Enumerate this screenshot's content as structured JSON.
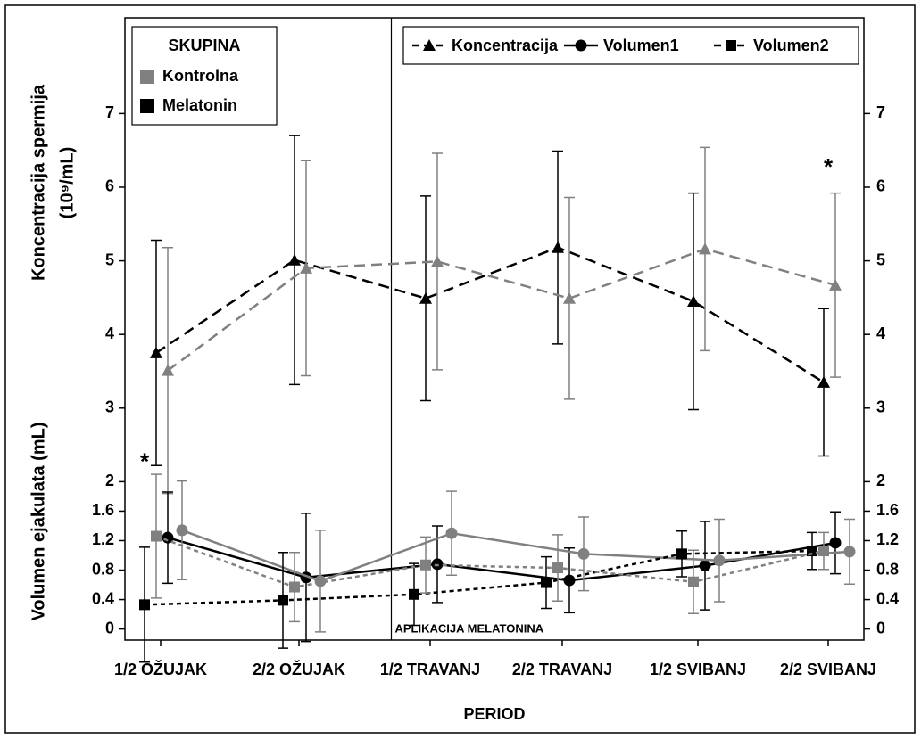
{
  "chart_data": {
    "type": "line",
    "x_label": "PERIOD",
    "y_label_upper": "Koncentracija spermija",
    "y_label_upper_unit": "(10⁹/mL)",
    "y_label_lower": "Volumen ejakulata (mL)",
    "annotation": "APLIKACIJA MELATONINA",
    "annotation_category": 1.5,
    "asterisks": [
      {
        "text": "*",
        "category": 0,
        "y": 2.25
      },
      {
        "text": "*",
        "category": 5,
        "y": 6.25
      }
    ],
    "categories": [
      "1/2 OŽUJAK",
      "2/2 OŽUJAK",
      "1/2 TRAVANJ",
      "2/2 TRAVANJ",
      "1/2 SVIBANJ",
      "2/2 SVIBANJ"
    ],
    "ylim": [
      -0.15,
      8.3
    ],
    "yticks": [
      0,
      0.4,
      0.8,
      1.2,
      1.6,
      2,
      3,
      4,
      5,
      6,
      7
    ],
    "y2lim": [
      -0.15,
      8.3
    ],
    "y2ticks": [
      0,
      0.4,
      0.8,
      1.2,
      1.6,
      2,
      3,
      4,
      5,
      6,
      7
    ],
    "group_legend": {
      "title": "SKUPINA",
      "items": [
        {
          "name": "Kontrolna",
          "color": "#808080"
        },
        {
          "name": "Melatonin",
          "color": "#000000"
        }
      ]
    },
    "measure_legend": [
      {
        "name": "Koncentracija",
        "marker": "triangle",
        "dash": "dashed"
      },
      {
        "name": "Volumen1",
        "marker": "circle",
        "dash": "solid"
      },
      {
        "name": "Volumen2",
        "marker": "square",
        "dash": "dotted"
      }
    ],
    "series": [
      {
        "measure": 0,
        "group": 1,
        "values": [
          3.75,
          5.01,
          4.49,
          5.18,
          4.45,
          3.35
        ],
        "errors": [
          1.53,
          1.69,
          1.39,
          1.31,
          1.47,
          1.0
        ]
      },
      {
        "measure": 0,
        "group": 0,
        "values": [
          3.51,
          4.9,
          4.99,
          4.49,
          5.16,
          4.67
        ],
        "errors": [
          1.67,
          1.46,
          1.47,
          1.37,
          1.38,
          1.25
        ]
      },
      {
        "measure": 1,
        "group": 1,
        "values": [
          1.24,
          0.7,
          0.88,
          0.66,
          0.86,
          1.17
        ],
        "errors": [
          0.62,
          0.87,
          0.52,
          0.44,
          0.6,
          0.42
        ]
      },
      {
        "measure": 1,
        "group": 0,
        "values": [
          1.34,
          0.65,
          1.3,
          1.02,
          0.93,
          1.05
        ],
        "errors": [
          0.67,
          0.69,
          0.57,
          0.5,
          0.56,
          0.44
        ]
      },
      {
        "measure": 2,
        "group": 1,
        "values": [
          0.33,
          0.39,
          0.47,
          0.63,
          1.02,
          1.06
        ],
        "errors": [
          0.78,
          0.65,
          0.42,
          0.35,
          0.31,
          0.25
        ]
      },
      {
        "measure": 2,
        "group": 0,
        "values": [
          1.26,
          0.57,
          0.87,
          0.83,
          0.64,
          1.06
        ],
        "errors": [
          0.84,
          0.47,
          0.38,
          0.45,
          0.43,
          0.25
        ]
      }
    ]
  }
}
